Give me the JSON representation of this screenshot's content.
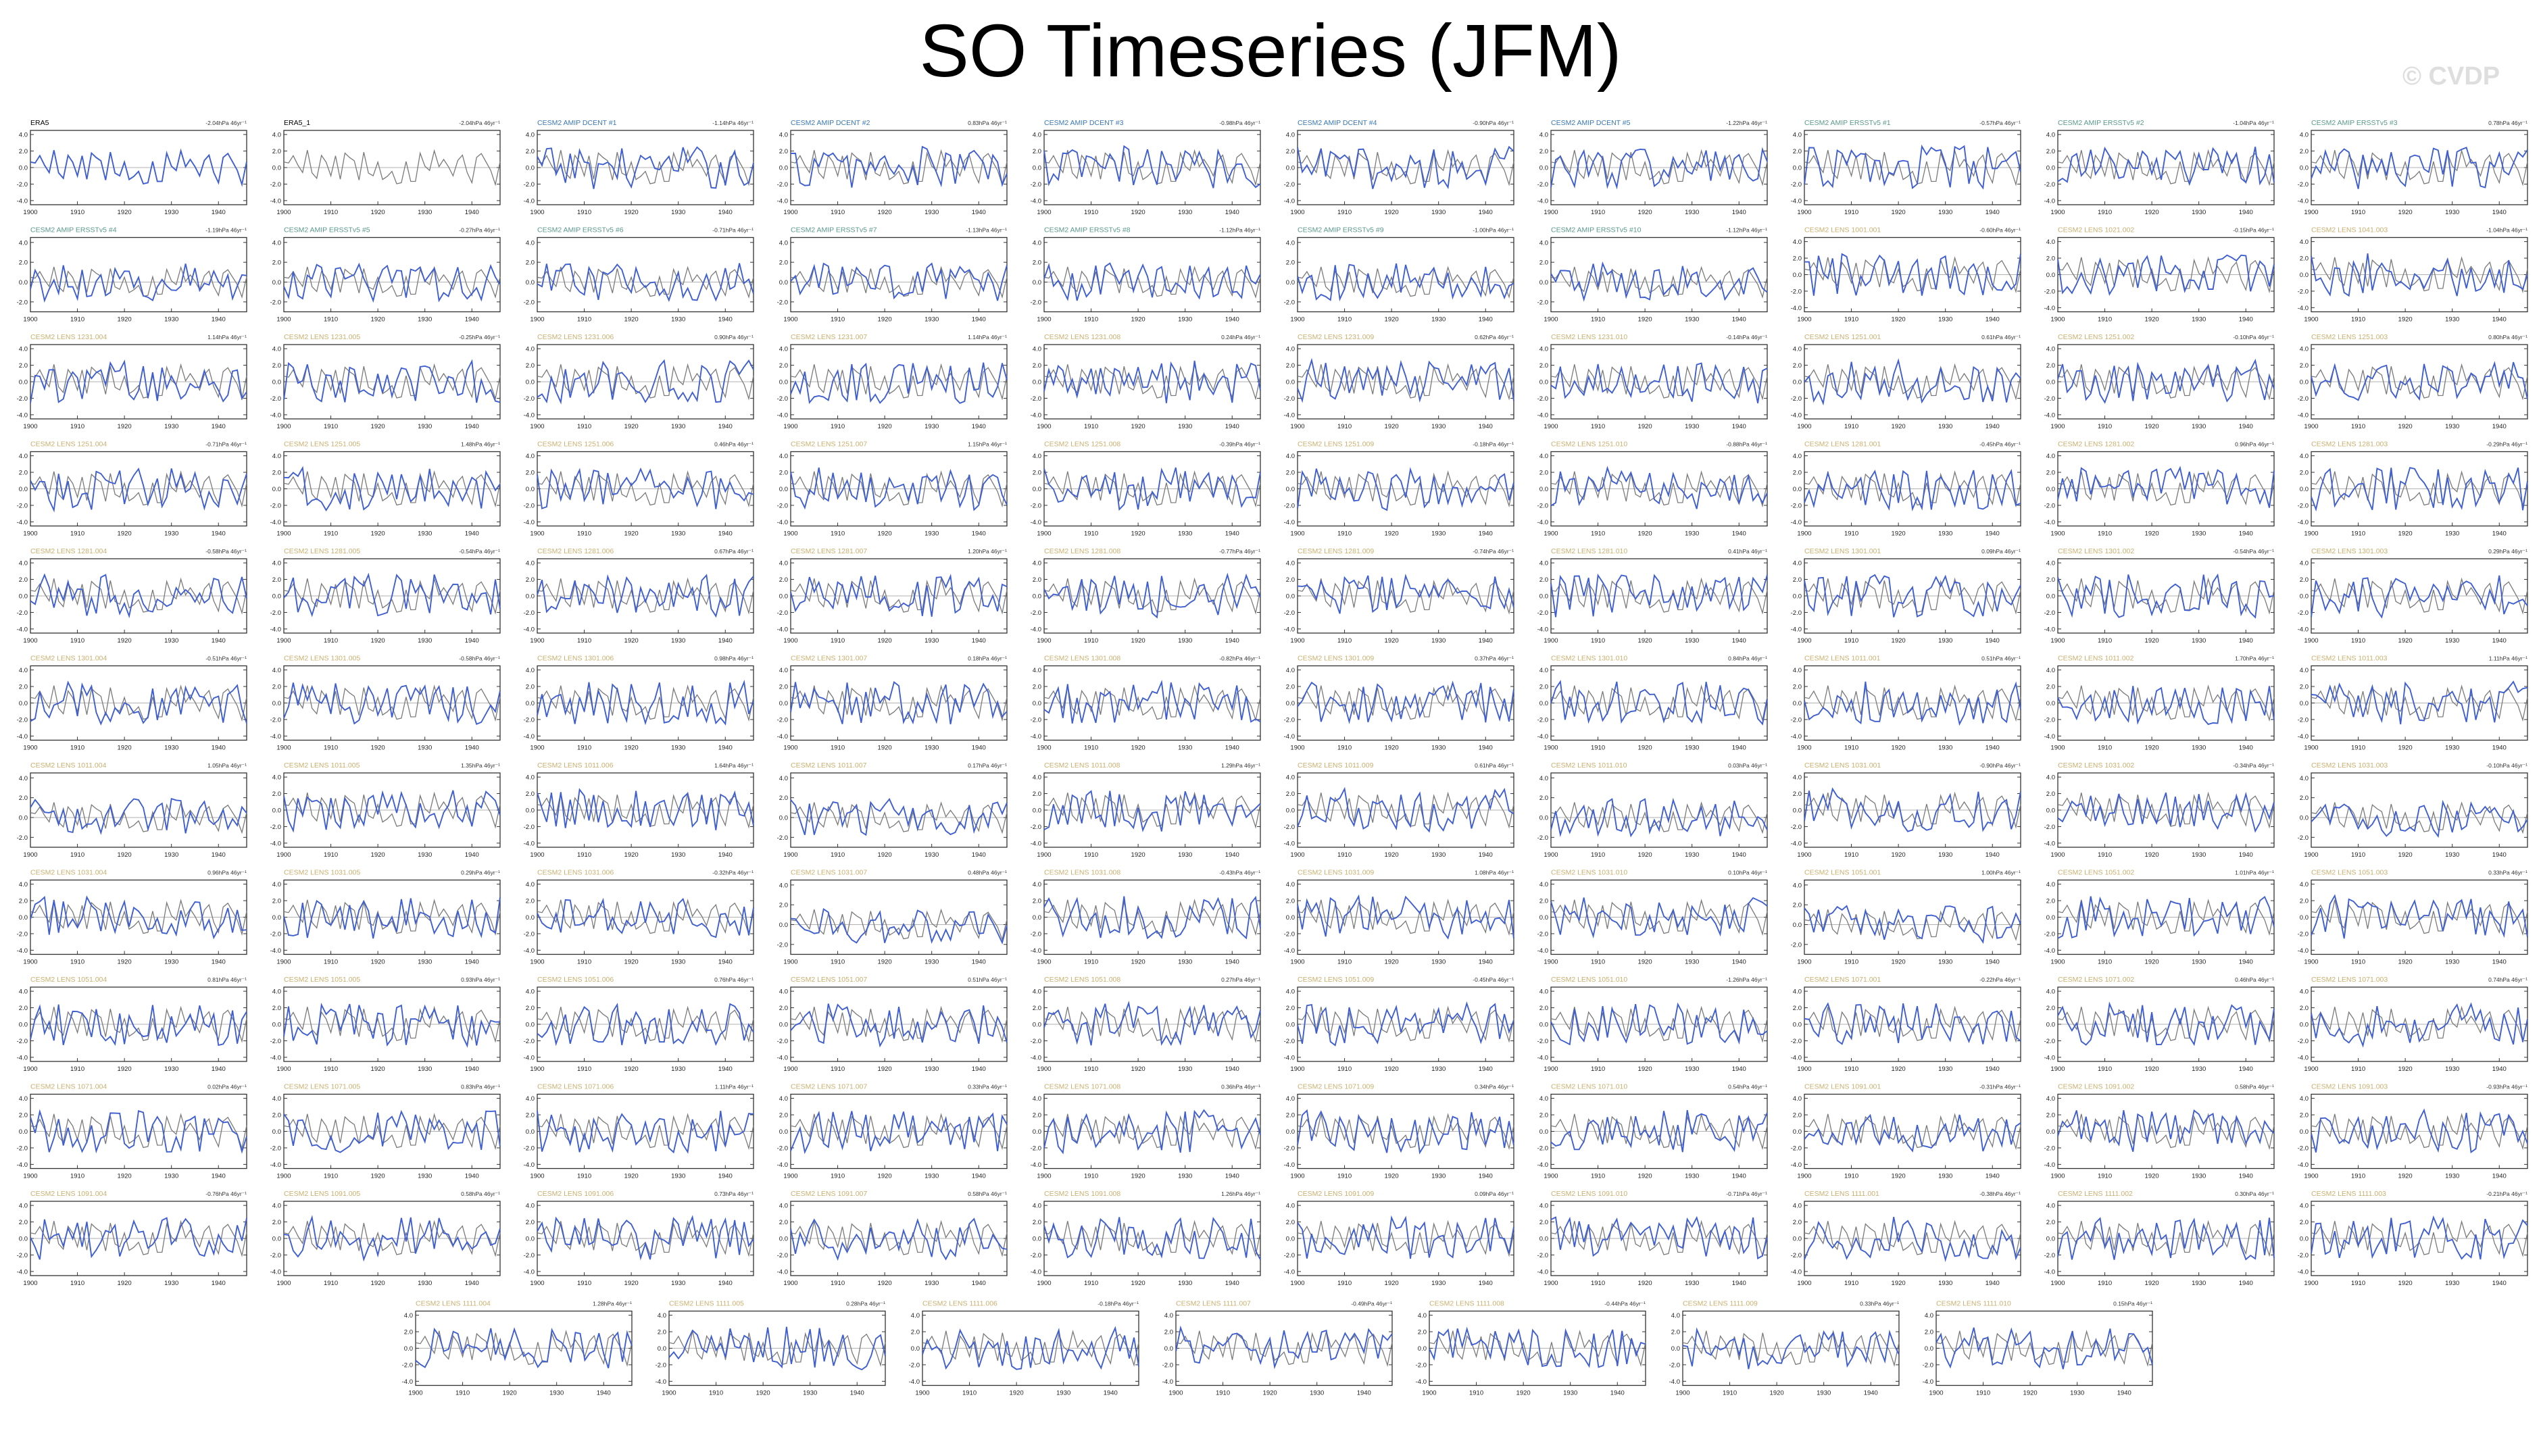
{
  "title": "SO Timeseries (JFM)",
  "watermark": "© CVDP",
  "colors": {
    "model_line": "#3f5fd0",
    "obs_line": "#7a7a7a",
    "obs_title": "#000000",
    "amip_title": "#3a78b6",
    "amip_ersst_title": "#5a9a8a",
    "lens_title": "#c9b070",
    "axis": "#333333",
    "zero_line": "#999999"
  },
  "chart_data": {
    "type": "line",
    "layout": "panel grid, 10 columns x 11 rows plus a final row of 7",
    "xlabel": "",
    "ylabel": "",
    "x_ticks": [
      "1900",
      "1910",
      "1920",
      "1930",
      "1940"
    ],
    "xlim": [
      1900,
      1946
    ],
    "y_ticks_full": [
      "4.0",
      "2.0",
      "0.0",
      "-2.0",
      "-4.0"
    ],
    "y_ticks_short": [
      "4.0",
      "2.0",
      "0.0",
      "-2.0"
    ],
    "ylim_full": [
      -4.5,
      4.5
    ],
    "ylim_short": [
      -3,
      4.5
    ],
    "trend_unit": "hPa 46yr⁻¹",
    "series": [
      "observed SO index (ERA5)",
      "model SO index"
    ],
    "panels": [
      {
        "title": "ERA5",
        "trend": "-2.04",
        "kind": "obs"
      },
      {
        "title": "ERA5_1",
        "trend": "-2.04",
        "kind": "obs"
      },
      {
        "title": "CESM2 AMIP DCENT #1",
        "trend": "-1.14",
        "kind": "amip"
      },
      {
        "title": "CESM2 AMIP DCENT #2",
        "trend": "0.83",
        "kind": "amip"
      },
      {
        "title": "CESM2 AMIP DCENT #3",
        "trend": "-0.98",
        "kind": "amip"
      },
      {
        "title": "CESM2 AMIP DCENT #4",
        "trend": "-0.90",
        "kind": "amip"
      },
      {
        "title": "CESM2 AMIP DCENT #5",
        "trend": "-1.22",
        "kind": "amip"
      },
      {
        "title": "CESM2 AMIP ERSSTv5 #1",
        "trend": "-0.57",
        "kind": "amip_ersst"
      },
      {
        "title": "CESM2 AMIP ERSSTv5 #2",
        "trend": "-1.04",
        "kind": "amip_ersst"
      },
      {
        "title": "CESM2 AMIP ERSSTv5 #3",
        "trend": "0.78",
        "kind": "amip_ersst"
      },
      {
        "title": "CESM2 AMIP ERSSTv5 #4",
        "trend": "-1.19",
        "kind": "amip_ersst"
      },
      {
        "title": "CESM2 AMIP ERSSTv5 #5",
        "trend": "-0.27",
        "kind": "amip_ersst"
      },
      {
        "title": "CESM2 AMIP ERSSTv5 #6",
        "trend": "-0.71",
        "kind": "amip_ersst"
      },
      {
        "title": "CESM2 AMIP ERSSTv5 #7",
        "trend": "-1.13",
        "kind": "amip_ersst"
      },
      {
        "title": "CESM2 AMIP ERSSTv5 #8",
        "trend": "-1.12",
        "kind": "amip_ersst"
      },
      {
        "title": "CESM2 AMIP ERSSTv5 #9",
        "trend": "-1.00",
        "kind": "amip_ersst"
      },
      {
        "title": "CESM2 AMIP ERSSTv5 #10",
        "trend": "-1.12",
        "kind": "amip_ersst"
      },
      {
        "title": "CESM2 LENS 1001.001",
        "trend": "-0.60",
        "kind": "lens"
      },
      {
        "title": "CESM2 LENS 1021.002",
        "trend": "-0.15",
        "kind": "lens"
      },
      {
        "title": "CESM2 LENS 1041.003",
        "trend": "-1.04",
        "kind": "lens"
      },
      {
        "title": "CESM2 LENS 1231.004",
        "trend": "1.14",
        "kind": "lens"
      },
      {
        "title": "CESM2 LENS 1231.005",
        "trend": "-0.25",
        "kind": "lens"
      },
      {
        "title": "CESM2 LENS 1231.006",
        "trend": "0.90",
        "kind": "lens"
      },
      {
        "title": "CESM2 LENS 1231.007",
        "trend": "1.14",
        "kind": "lens"
      },
      {
        "title": "CESM2 LENS 1231.008",
        "trend": "0.24",
        "kind": "lens"
      },
      {
        "title": "CESM2 LENS 1231.009",
        "trend": "0.62",
        "kind": "lens"
      },
      {
        "title": "CESM2 LENS 1231.010",
        "trend": "-0.14",
        "kind": "lens"
      },
      {
        "title": "CESM2 LENS 1251.001",
        "trend": "0.61",
        "kind": "lens"
      },
      {
        "title": "CESM2 LENS 1251.002",
        "trend": "-0.10",
        "kind": "lens"
      },
      {
        "title": "CESM2 LENS 1251.003",
        "trend": "0.80",
        "kind": "lens"
      },
      {
        "title": "CESM2 LENS 1251.004",
        "trend": "-0.71",
        "kind": "lens"
      },
      {
        "title": "CESM2 LENS 1251.005",
        "trend": "1.48",
        "kind": "lens"
      },
      {
        "title": "CESM2 LENS 1251.006",
        "trend": "0.46",
        "kind": "lens"
      },
      {
        "title": "CESM2 LENS 1251.007",
        "trend": "1.15",
        "kind": "lens"
      },
      {
        "title": "CESM2 LENS 1251.008",
        "trend": "-0.39",
        "kind": "lens"
      },
      {
        "title": "CESM2 LENS 1251.009",
        "trend": "-0.18",
        "kind": "lens"
      },
      {
        "title": "CESM2 LENS 1251.010",
        "trend": "-0.88",
        "kind": "lens"
      },
      {
        "title": "CESM2 LENS 1281.001",
        "trend": "-0.45",
        "kind": "lens"
      },
      {
        "title": "CESM2 LENS 1281.002",
        "trend": "0.96",
        "kind": "lens"
      },
      {
        "title": "CESM2 LENS 1281.003",
        "trend": "-0.29",
        "kind": "lens"
      },
      {
        "title": "CESM2 LENS 1281.004",
        "trend": "-0.58",
        "kind": "lens"
      },
      {
        "title": "CESM2 LENS 1281.005",
        "trend": "-0.54",
        "kind": "lens"
      },
      {
        "title": "CESM2 LENS 1281.006",
        "trend": "0.67",
        "kind": "lens"
      },
      {
        "title": "CESM2 LENS 1281.007",
        "trend": "1.20",
        "kind": "lens"
      },
      {
        "title": "CESM2 LENS 1281.008",
        "trend": "-0.77",
        "kind": "lens"
      },
      {
        "title": "CESM2 LENS 1281.009",
        "trend": "-0.74",
        "kind": "lens"
      },
      {
        "title": "CESM2 LENS 1281.010",
        "trend": "0.41",
        "kind": "lens"
      },
      {
        "title": "CESM2 LENS 1301.001",
        "trend": "0.09",
        "kind": "lens"
      },
      {
        "title": "CESM2 LENS 1301.002",
        "trend": "-0.54",
        "kind": "lens"
      },
      {
        "title": "CESM2 LENS 1301.003",
        "trend": "0.29",
        "kind": "lens"
      },
      {
        "title": "CESM2 LENS 1301.004",
        "trend": "-0.51",
        "kind": "lens"
      },
      {
        "title": "CESM2 LENS 1301.005",
        "trend": "-0.58",
        "kind": "lens"
      },
      {
        "title": "CESM2 LENS 1301.006",
        "trend": "0.98",
        "kind": "lens"
      },
      {
        "title": "CESM2 LENS 1301.007",
        "trend": "0.18",
        "kind": "lens"
      },
      {
        "title": "CESM2 LENS 1301.008",
        "trend": "-0.82",
        "kind": "lens"
      },
      {
        "title": "CESM2 LENS 1301.009",
        "trend": "0.37",
        "kind": "lens"
      },
      {
        "title": "CESM2 LENS 1301.010",
        "trend": "0.84",
        "kind": "lens"
      },
      {
        "title": "CESM2 LENS 1011.001",
        "trend": "0.51",
        "kind": "lens"
      },
      {
        "title": "CESM2 LENS 1011.002",
        "trend": "1.70",
        "kind": "lens"
      },
      {
        "title": "CESM2 LENS 1011.003",
        "trend": "1.11",
        "kind": "lens"
      },
      {
        "title": "CESM2 LENS 1011.004",
        "trend": "1.05",
        "kind": "lens"
      },
      {
        "title": "CESM2 LENS 1011.005",
        "trend": "1.35",
        "kind": "lens"
      },
      {
        "title": "CESM2 LENS 1011.006",
        "trend": "1.64",
        "kind": "lens"
      },
      {
        "title": "CESM2 LENS 1011.007",
        "trend": "0.17",
        "kind": "lens"
      },
      {
        "title": "CESM2 LENS 1011.008",
        "trend": "1.29",
        "kind": "lens"
      },
      {
        "title": "CESM2 LENS 1011.009",
        "trend": "0.61",
        "kind": "lens"
      },
      {
        "title": "CESM2 LENS 1011.010",
        "trend": "0.03",
        "kind": "lens"
      },
      {
        "title": "CESM2 LENS 1031.001",
        "trend": "-0.90",
        "kind": "lens"
      },
      {
        "title": "CESM2 LENS 1031.002",
        "trend": "-0.34",
        "kind": "lens"
      },
      {
        "title": "CESM2 LENS 1031.003",
        "trend": "-0.10",
        "kind": "lens"
      },
      {
        "title": "CESM2 LENS 1031.004",
        "trend": "0.96",
        "kind": "lens"
      },
      {
        "title": "CESM2 LENS 1031.005",
        "trend": "0.29",
        "kind": "lens"
      },
      {
        "title": "CESM2 LENS 1031.006",
        "trend": "-0.32",
        "kind": "lens"
      },
      {
        "title": "CESM2 LENS 1031.007",
        "trend": "0.48",
        "kind": "lens"
      },
      {
        "title": "CESM2 LENS 1031.008",
        "trend": "-0.43",
        "kind": "lens"
      },
      {
        "title": "CESM2 LENS 1031.009",
        "trend": "1.08",
        "kind": "lens"
      },
      {
        "title": "CESM2 LENS 1031.010",
        "trend": "0.10",
        "kind": "lens"
      },
      {
        "title": "CESM2 LENS 1051.001",
        "trend": "1.00",
        "kind": "lens"
      },
      {
        "title": "CESM2 LENS 1051.002",
        "trend": "1.01",
        "kind": "lens"
      },
      {
        "title": "CESM2 LENS 1051.003",
        "trend": "0.33",
        "kind": "lens"
      },
      {
        "title": "CESM2 LENS 1051.004",
        "trend": "0.81",
        "kind": "lens"
      },
      {
        "title": "CESM2 LENS 1051.005",
        "trend": "0.93",
        "kind": "lens"
      },
      {
        "title": "CESM2 LENS 1051.006",
        "trend": "0.76",
        "kind": "lens"
      },
      {
        "title": "CESM2 LENS 1051.007",
        "trend": "0.51",
        "kind": "lens"
      },
      {
        "title": "CESM2 LENS 1051.008",
        "trend": "0.27",
        "kind": "lens"
      },
      {
        "title": "CESM2 LENS 1051.009",
        "trend": "-0.45",
        "kind": "lens"
      },
      {
        "title": "CESM2 LENS 1051.010",
        "trend": "-1.26",
        "kind": "lens"
      },
      {
        "title": "CESM2 LENS 1071.001",
        "trend": "-0.22",
        "kind": "lens"
      },
      {
        "title": "CESM2 LENS 1071.002",
        "trend": "0.46",
        "kind": "lens"
      },
      {
        "title": "CESM2 LENS 1071.003",
        "trend": "0.74",
        "kind": "lens"
      },
      {
        "title": "CESM2 LENS 1071.004",
        "trend": "0.02",
        "kind": "lens"
      },
      {
        "title": "CESM2 LENS 1071.005",
        "trend": "0.83",
        "kind": "lens"
      },
      {
        "title": "CESM2 LENS 1071.006",
        "trend": "1.11",
        "kind": "lens"
      },
      {
        "title": "CESM2 LENS 1071.007",
        "trend": "0.33",
        "kind": "lens"
      },
      {
        "title": "CESM2 LENS 1071.008",
        "trend": "0.36",
        "kind": "lens"
      },
      {
        "title": "CESM2 LENS 1071.009",
        "trend": "0.34",
        "kind": "lens"
      },
      {
        "title": "CESM2 LENS 1071.010",
        "trend": "0.54",
        "kind": "lens"
      },
      {
        "title": "CESM2 LENS 1091.001",
        "trend": "-0.31",
        "kind": "lens"
      },
      {
        "title": "CESM2 LENS 1091.002",
        "trend": "0.58",
        "kind": "lens"
      },
      {
        "title": "CESM2 LENS 1091.003",
        "trend": "-0.93",
        "kind": "lens"
      },
      {
        "title": "CESM2 LENS 1091.004",
        "trend": "-0.76",
        "kind": "lens"
      },
      {
        "title": "CESM2 LENS 1091.005",
        "trend": "0.58",
        "kind": "lens"
      },
      {
        "title": "CESM2 LENS 1091.006",
        "trend": "0.73",
        "kind": "lens"
      },
      {
        "title": "CESM2 LENS 1091.007",
        "trend": "0.58",
        "kind": "lens"
      },
      {
        "title": "CESM2 LENS 1091.008",
        "trend": "1.26",
        "kind": "lens"
      },
      {
        "title": "CESM2 LENS 1091.009",
        "trend": "0.09",
        "kind": "lens"
      },
      {
        "title": "CESM2 LENS 1091.010",
        "trend": "-0.71",
        "kind": "lens"
      },
      {
        "title": "CESM2 LENS 1111.001",
        "trend": "-0.38",
        "kind": "lens"
      },
      {
        "title": "CESM2 LENS 1111.002",
        "trend": "0.30",
        "kind": "lens"
      },
      {
        "title": "CESM2 LENS 1111.003",
        "trend": "-0.21",
        "kind": "lens"
      },
      {
        "title": "CESM2 LENS 1111.004",
        "trend": "1.28",
        "kind": "lens"
      },
      {
        "title": "CESM2 LENS 1111.005",
        "trend": "0.28",
        "kind": "lens"
      },
      {
        "title": "CESM2 LENS 1111.006",
        "trend": "-0.18",
        "kind": "lens"
      },
      {
        "title": "CESM2 LENS 1111.007",
        "trend": "-0.49",
        "kind": "lens"
      },
      {
        "title": "CESM2 LENS 1111.008",
        "trend": "-0.44",
        "kind": "lens"
      },
      {
        "title": "CESM2 LENS 1111.009",
        "trend": "0.33",
        "kind": "lens"
      },
      {
        "title": "CESM2 LENS 1111.010",
        "trend": "0.15",
        "kind": "lens"
      }
    ]
  }
}
